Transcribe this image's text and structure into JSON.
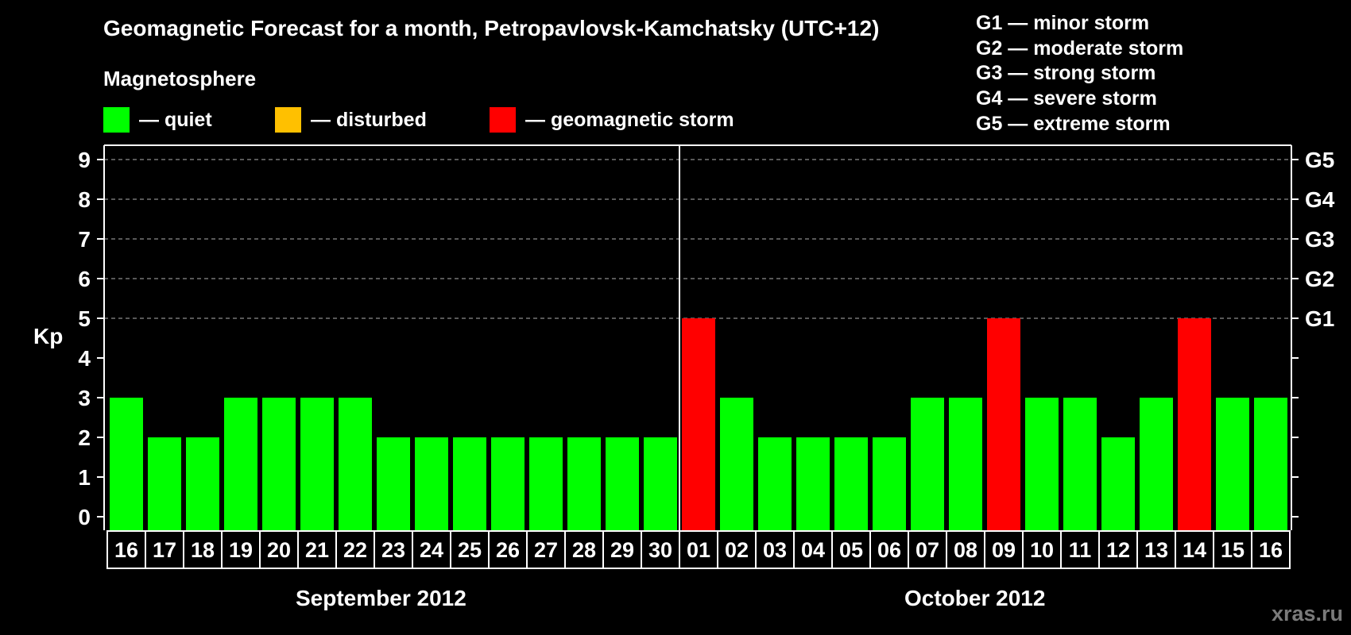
{
  "header": {
    "title": "Geomagnetic Forecast for a month, Petropavlovsk-Kamchatsky (UTC+12)",
    "subtitle": "Magnetosphere"
  },
  "legend": {
    "items": [
      {
        "label": "— quiet",
        "color": "#00ff00"
      },
      {
        "label": "— disturbed",
        "color": "#ffc000"
      },
      {
        "label": "— geomagnetic storm",
        "color": "#ff0000"
      }
    ]
  },
  "storm_scale": {
    "items": [
      "G1 — minor storm",
      "G2 — moderate storm",
      "G3 — strong storm",
      "G4 — severe storm",
      "G5 — extreme storm"
    ]
  },
  "axis": {
    "y_label": "Kp",
    "y_ticks": [
      "0",
      "1",
      "2",
      "3",
      "4",
      "5",
      "6",
      "7",
      "8",
      "9"
    ],
    "right_ticks": [
      {
        "value": 5,
        "label": "G1"
      },
      {
        "value": 6,
        "label": "G2"
      },
      {
        "value": 7,
        "label": "G3"
      },
      {
        "value": 8,
        "label": "G4"
      },
      {
        "value": 9,
        "label": "G5"
      }
    ]
  },
  "months": [
    {
      "label": "September 2012"
    },
    {
      "label": "October 2012"
    }
  ],
  "watermark": "xras.ru",
  "colors": {
    "quiet": "#00ff00",
    "disturbed": "#ffc000",
    "storm": "#ff0000",
    "grid": "#8c8c8c",
    "frame": "#ffffff"
  },
  "chart_data": {
    "type": "bar",
    "title": "Geomagnetic Forecast for a month, Petropavlovsk-Kamchatsky (UTC+12)",
    "xlabel": "",
    "ylabel": "Kp",
    "ylim": [
      0,
      9
    ],
    "grid": "horizontal dashed at Kp 5-9",
    "legend_position": "top",
    "categories": [
      "16",
      "17",
      "18",
      "19",
      "20",
      "21",
      "22",
      "23",
      "24",
      "25",
      "26",
      "27",
      "28",
      "29",
      "30",
      "01",
      "02",
      "03",
      "04",
      "05",
      "06",
      "07",
      "08",
      "09",
      "10",
      "11",
      "12",
      "13",
      "14",
      "15",
      "16"
    ],
    "category_months": [
      "September 2012 (16-30)",
      "October 2012 (01-16)"
    ],
    "values": [
      3,
      2,
      2,
      3,
      3,
      3,
      3,
      2,
      2,
      2,
      2,
      2,
      2,
      2,
      2,
      5,
      3,
      2,
      2,
      2,
      2,
      3,
      3,
      5,
      3,
      3,
      2,
      3,
      5,
      3,
      3
    ],
    "status": [
      "quiet",
      "quiet",
      "quiet",
      "quiet",
      "quiet",
      "quiet",
      "quiet",
      "quiet",
      "quiet",
      "quiet",
      "quiet",
      "quiet",
      "quiet",
      "quiet",
      "quiet",
      "storm",
      "quiet",
      "quiet",
      "quiet",
      "quiet",
      "quiet",
      "quiet",
      "quiet",
      "storm",
      "quiet",
      "quiet",
      "quiet",
      "quiet",
      "storm",
      "quiet",
      "quiet"
    ],
    "secondary_axis": {
      "5": "G1",
      "6": "G2",
      "7": "G3",
      "8": "G4",
      "9": "G5"
    }
  }
}
